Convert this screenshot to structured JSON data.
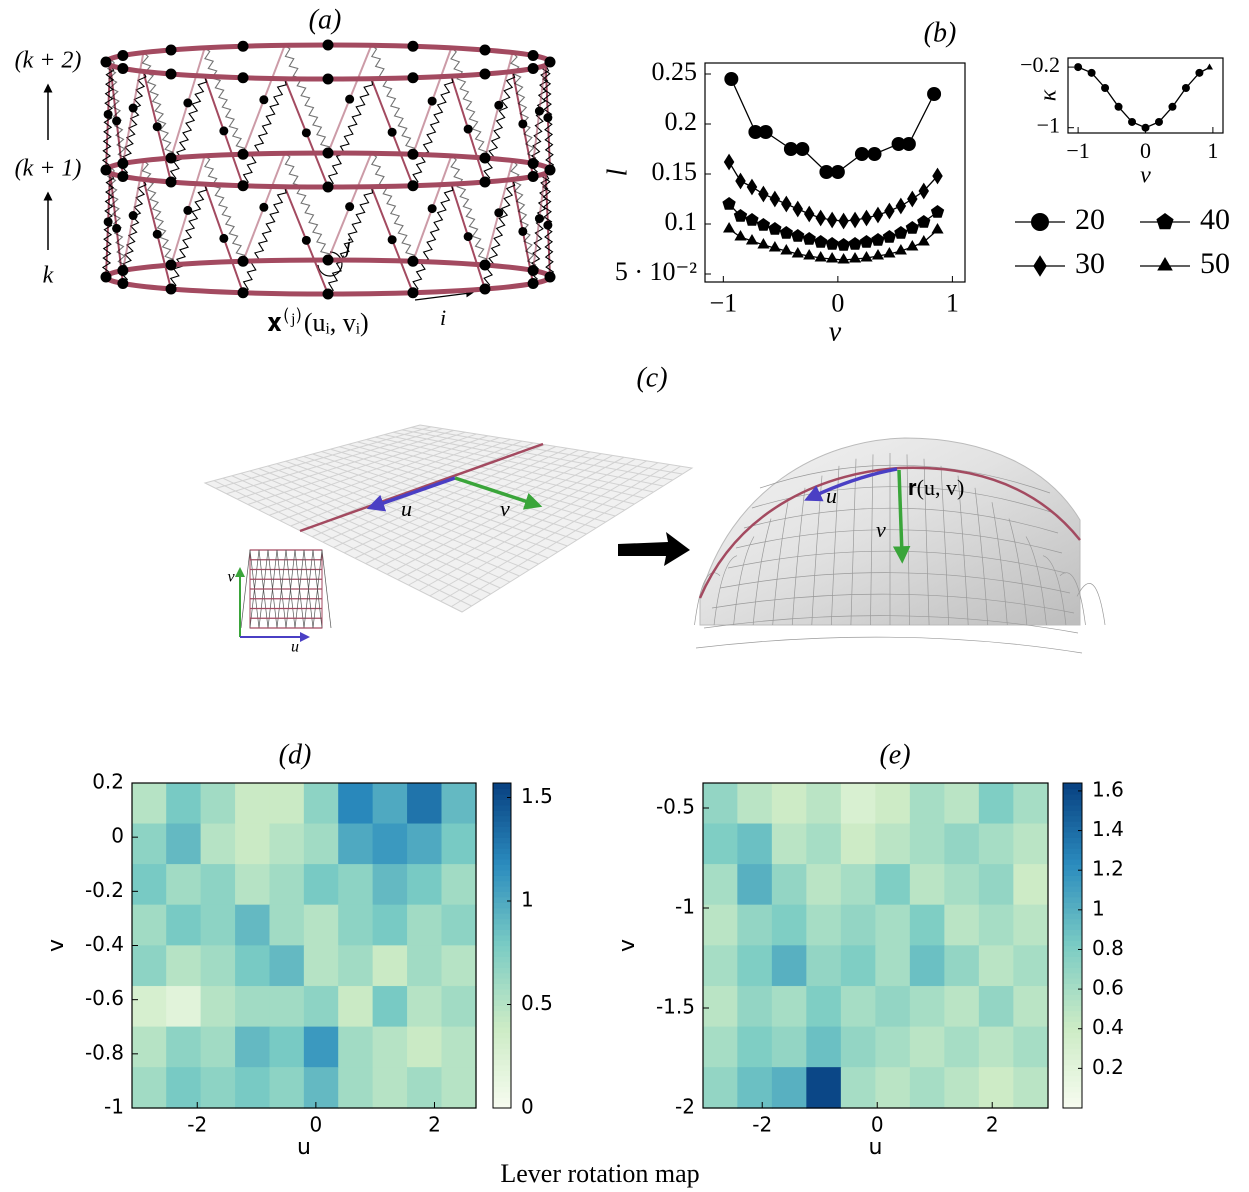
{
  "caption": "Lever rotation map",
  "panel_a": {
    "title": "(a)",
    "ring_labels": [
      "(k + 2)",
      "(k + 1)",
      "k"
    ],
    "node_label": "j",
    "index_label": "i",
    "position_label": "𝐱⁽ʲ⁾(uᵢ, vᵢ)"
  },
  "panel_c": {
    "title": "(c)",
    "plane_u": "u",
    "plane_v": "v",
    "lattice_u": "u",
    "lattice_v": "v",
    "surface_u": "u",
    "surface_v": "v",
    "surface_point": "𝐫(u, v)"
  },
  "chart_data": [
    {
      "type": "line",
      "title": "(b)",
      "x_label": "v",
      "y_label": "l",
      "xlim": [
        -1.16,
        1.11
      ],
      "ylim": [
        0.042,
        0.261
      ],
      "xticks": [
        {
          "value": -1,
          "label": "−1"
        },
        0,
        1
      ],
      "yticks": [
        {
          "value": 0.05,
          "label": "5 · 10⁻²"
        },
        0.1,
        0.15,
        0.2,
        0.25
      ],
      "legend": "outside-right",
      "series": [
        {
          "name": "20",
          "color": "#000000",
          "marker": "circle",
          "x": [
            -0.93,
            -0.72,
            -0.63,
            -0.41,
            -0.31,
            -0.1,
            0,
            0.21,
            0.32,
            0.53,
            0.62,
            0.84
          ],
          "values": [
            0.245,
            0.192,
            0.192,
            0.175,
            0.175,
            0.152,
            0.152,
            0.17,
            0.17,
            0.18,
            0.18,
            0.23
          ]
        },
        {
          "name": "30",
          "color": "#000000",
          "marker": "diamond",
          "x": [
            -0.95,
            -0.85,
            -0.75,
            -0.65,
            -0.55,
            -0.45,
            -0.35,
            -0.25,
            -0.15,
            -0.05,
            0.05,
            0.15,
            0.25,
            0.35,
            0.45,
            0.55,
            0.65,
            0.75,
            0.87
          ],
          "values": [
            0.162,
            0.143,
            0.137,
            0.13,
            0.125,
            0.12,
            0.115,
            0.11,
            0.106,
            0.104,
            0.103,
            0.104,
            0.106,
            0.109,
            0.113,
            0.118,
            0.125,
            0.133,
            0.148
          ]
        },
        {
          "name": "40",
          "color": "#000000",
          "marker": "pentagon",
          "x": [
            -0.95,
            -0.85,
            -0.75,
            -0.65,
            -0.55,
            -0.45,
            -0.35,
            -0.25,
            -0.15,
            -0.05,
            0.05,
            0.15,
            0.25,
            0.35,
            0.45,
            0.55,
            0.65,
            0.75,
            0.87
          ],
          "values": [
            0.12,
            0.108,
            0.104,
            0.099,
            0.095,
            0.091,
            0.088,
            0.085,
            0.082,
            0.08,
            0.079,
            0.08,
            0.082,
            0.084,
            0.087,
            0.091,
            0.096,
            0.102,
            0.112
          ]
        },
        {
          "name": "50",
          "color": "#000000",
          "marker": "triangle",
          "x": [
            -0.95,
            -0.85,
            -0.75,
            -0.65,
            -0.55,
            -0.45,
            -0.35,
            -0.25,
            -0.15,
            -0.05,
            0.05,
            0.15,
            0.25,
            0.35,
            0.45,
            0.55,
            0.65,
            0.75,
            0.87
          ],
          "values": [
            0.095,
            0.087,
            0.083,
            0.079,
            0.076,
            0.073,
            0.07,
            0.068,
            0.066,
            0.065,
            0.064,
            0.065,
            0.066,
            0.068,
            0.07,
            0.073,
            0.077,
            0.082,
            0.094
          ]
        }
      ]
    },
    {
      "type": "line",
      "x_label": "v",
      "y_label": "κ",
      "xlim": [
        -1.15,
        1.15
      ],
      "ylim": [
        -1.07,
        -0.08
      ],
      "xticks": [
        {
          "value": -1,
          "label": "−1"
        },
        0,
        1
      ],
      "yticks": [
        {
          "value": -0.2,
          "label": "−0.2"
        },
        {
          "value": -1,
          "label": "−1"
        }
      ],
      "series": [
        {
          "color": "#000000",
          "marker": "circle",
          "x": [
            -1,
            -0.8,
            -0.6,
            -0.4,
            -0.2,
            0,
            0.2,
            0.4,
            0.6,
            0.8,
            0.95
          ],
          "values": [
            -0.2,
            -0.276,
            -0.476,
            -0.724,
            -0.924,
            -1,
            -0.924,
            -0.724,
            -0.476,
            -0.276,
            -0.205
          ]
        }
      ]
    },
    {
      "type": "heatmap",
      "title": "(d)",
      "x_label": "u",
      "y_label": "v",
      "xlim": [
        -3.1,
        2.7
      ],
      "ylim": [
        -1,
        0.2
      ],
      "xticks": [
        -2,
        0,
        2
      ],
      "yticks": [
        0.2,
        0,
        -0.2,
        -0.4,
        -0.6,
        -0.8,
        -1
      ],
      "clim": [
        0,
        1.57
      ],
      "cticks": [
        0,
        0.5,
        1,
        1.5
      ],
      "colormap": [
        "#f7fcf0",
        "#ccebc5",
        "#7bccc4",
        "#2b8cbe",
        "#084081"
      ],
      "z": [
        [
          0.5,
          0.8,
          0.6,
          0.4,
          0.4,
          0.7,
          1.2,
          1.0,
          1.3,
          0.9
        ],
        [
          0.7,
          0.9,
          0.5,
          0.4,
          0.5,
          0.6,
          1.0,
          1.1,
          1.0,
          0.8
        ],
        [
          0.8,
          0.6,
          0.7,
          0.5,
          0.6,
          0.8,
          0.7,
          0.9,
          0.8,
          0.6
        ],
        [
          0.6,
          0.8,
          0.7,
          0.9,
          0.6,
          0.5,
          0.7,
          0.8,
          0.6,
          0.7
        ],
        [
          0.7,
          0.5,
          0.6,
          0.8,
          0.9,
          0.5,
          0.6,
          0.4,
          0.6,
          0.5
        ],
        [
          0.3,
          0.2,
          0.5,
          0.6,
          0.6,
          0.7,
          0.4,
          0.8,
          0.5,
          0.6
        ],
        [
          0.5,
          0.7,
          0.6,
          0.9,
          0.8,
          1.1,
          0.6,
          0.5,
          0.4,
          0.5
        ],
        [
          0.6,
          0.8,
          0.7,
          0.8,
          0.7,
          0.9,
          0.6,
          0.5,
          0.6,
          0.5
        ]
      ]
    },
    {
      "type": "heatmap",
      "title": "(e)",
      "x_label": "u",
      "y_label": "v",
      "xlim": [
        -3.03,
        2.97
      ],
      "ylim": [
        -2,
        -0.375
      ],
      "xticks": [
        -2,
        0,
        2
      ],
      "yticks": [
        -0.5,
        -1,
        -1.5,
        -2
      ],
      "clim": [
        0,
        1.64
      ],
      "cticks": [
        0.2,
        0.4,
        0.6,
        0.8,
        1,
        1.2,
        1.4,
        1.6
      ],
      "colormap": [
        "#f7fcf0",
        "#ccebc5",
        "#7bccc4",
        "#2b8cbe",
        "#084081"
      ],
      "z": [
        [
          0.7,
          0.5,
          0.4,
          0.5,
          0.3,
          0.4,
          0.6,
          0.5,
          0.8,
          0.6
        ],
        [
          0.8,
          0.9,
          0.5,
          0.6,
          0.4,
          0.5,
          0.6,
          0.7,
          0.6,
          0.5
        ],
        [
          0.6,
          1.0,
          0.7,
          0.5,
          0.6,
          0.8,
          0.5,
          0.6,
          0.7,
          0.4
        ],
        [
          0.5,
          0.7,
          0.8,
          0.6,
          0.7,
          0.6,
          0.8,
          0.5,
          0.6,
          0.5
        ],
        [
          0.6,
          0.8,
          1.0,
          0.7,
          0.8,
          0.6,
          0.9,
          0.7,
          0.5,
          0.6
        ],
        [
          0.5,
          0.7,
          0.6,
          0.8,
          0.6,
          0.7,
          0.6,
          0.5,
          0.7,
          0.5
        ],
        [
          0.6,
          0.8,
          0.7,
          0.9,
          0.7,
          0.6,
          0.5,
          0.6,
          0.5,
          0.6
        ],
        [
          0.7,
          0.9,
          1.0,
          1.6,
          0.6,
          0.5,
          0.6,
          0.5,
          0.4,
          0.5
        ]
      ]
    }
  ]
}
